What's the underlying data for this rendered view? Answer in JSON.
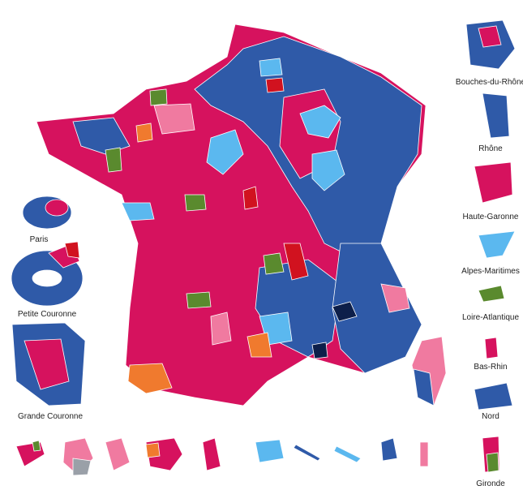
{
  "insets_left": [
    "Paris",
    "Petite Couronne",
    "Grande Couronne"
  ],
  "insets_right": [
    "Bouches-du-Rhône",
    "Rhône",
    "Haute-Garonne",
    "Alpes-Maritimes",
    "Loire-Atlantique",
    "Bas-Rhin",
    "Nord",
    "Gironde"
  ]
}
